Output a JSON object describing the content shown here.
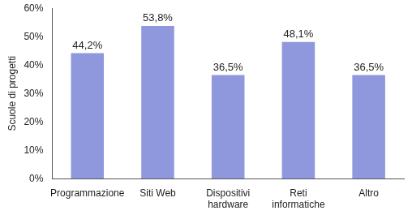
{
  "chart_data": {
    "type": "bar",
    "y_label": "Scuole di progetti",
    "categories": [
      "Programmazione",
      "Siti Web",
      "Dispositivi\nhardware",
      "Reti\ninformatiche",
      "Altro"
    ],
    "values": [
      44.2,
      53.8,
      36.5,
      48.1,
      36.5
    ],
    "value_labels": [
      "44,2%",
      "53,8%",
      "36,5%",
      "48,1%",
      "36,5%"
    ],
    "color": "#8f97dd",
    "ylim": [
      0,
      60
    ],
    "yticks": [
      {
        "value": 0,
        "label": "0%"
      },
      {
        "value": 10,
        "label": "10%"
      },
      {
        "value": 20,
        "label": "20%"
      },
      {
        "value": 30,
        "label": "30%"
      },
      {
        "value": 40,
        "label": "40%"
      },
      {
        "value": 50,
        "label": "50%"
      },
      {
        "value": 60,
        "label": "60%"
      }
    ],
    "grid": false,
    "data_labels": true
  }
}
